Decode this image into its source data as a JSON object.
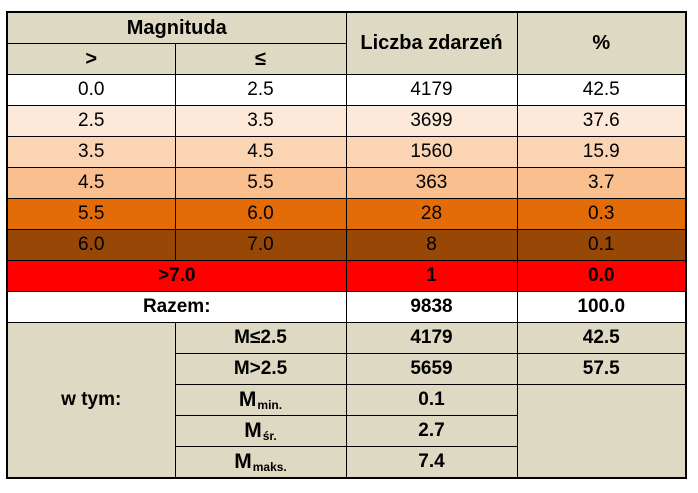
{
  "header": {
    "magnitude_label": "Magnituda",
    "gt_symbol": ">",
    "le_symbol": "≤",
    "count_label": "Liczba zdarzeń",
    "percent_label": "%"
  },
  "rows": [
    {
      "from": "0.0",
      "to": "2.5",
      "count": "4179",
      "percent": "42.5"
    },
    {
      "from": "2.5",
      "to": "3.5",
      "count": "3699",
      "percent": "37.6"
    },
    {
      "from": "3.5",
      "to": "4.5",
      "count": "1560",
      "percent": "15.9"
    },
    {
      "from": "4.5",
      "to": "5.5",
      "count": "363",
      "percent": "3.7"
    },
    {
      "from": "5.5",
      "to": "6.0",
      "count": "28",
      "percent": "0.3"
    },
    {
      "from": "6.0",
      "to": "7.0",
      "count": "8",
      "percent": "0.1"
    }
  ],
  "over7": {
    "label": ">7.0",
    "count": "1",
    "percent": "0.0"
  },
  "total": {
    "label": "Razem:",
    "count": "9838",
    "percent": "100.0"
  },
  "breakdown": {
    "label": "w tym:",
    "m_le": {
      "label": "M≤2.5",
      "count": "4179",
      "percent": "42.5"
    },
    "m_gt": {
      "label": "M>2.5",
      "count": "5659",
      "percent": "57.5"
    },
    "m_min": {
      "base": "M",
      "sub": "min.",
      "value": "0.1"
    },
    "m_avg": {
      "base": "M",
      "sub": "śr.",
      "value": "2.7"
    },
    "m_max": {
      "base": "M",
      "sub": "maks.",
      "value": "7.4"
    }
  },
  "colors": {
    "header_bg": "#ddd9c3",
    "row_colors": [
      "#ffffff",
      "#fde9d9",
      "#fbd4b4",
      "#fabf8f",
      "#e36c09",
      "#974806"
    ],
    "over7_bg": "#ff0000"
  }
}
